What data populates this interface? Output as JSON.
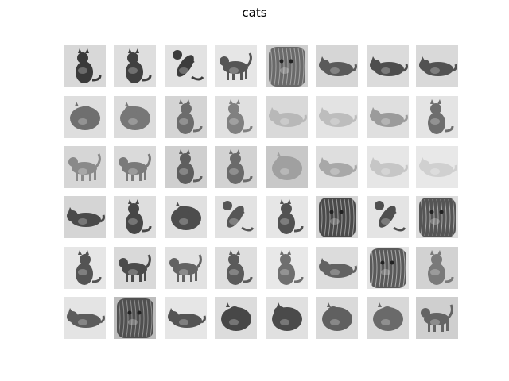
{
  "figure": {
    "title": "cats",
    "grid": {
      "rows": 6,
      "cols": 8
    },
    "thumbnails": [
      {
        "desc": "cat-sitting-side",
        "bg": "#d8d8d8",
        "fg": "#3a3a3a",
        "mode": "sit"
      },
      {
        "desc": "cat-sitting-back",
        "bg": "#dedede",
        "fg": "#404040",
        "mode": "sit"
      },
      {
        "desc": "cat-stretching-up",
        "bg": "#e2e2e2",
        "fg": "#3c3c3c",
        "mode": "jump"
      },
      {
        "desc": "cat-standing",
        "bg": "#e6e6e6",
        "fg": "#555555",
        "mode": "stand"
      },
      {
        "desc": "cat-closeup-tabby",
        "bg": "#cfcfcf",
        "fg": "#6a6a6a",
        "mode": "texture"
      },
      {
        "desc": "cat-lying-tabby",
        "bg": "#d6d6d6",
        "fg": "#5a5a5a",
        "mode": "lie"
      },
      {
        "desc": "cat-lying-tabby",
        "bg": "#dbdbdb",
        "fg": "#4e4e4e",
        "mode": "lie"
      },
      {
        "desc": "cat-lying-tabby",
        "bg": "#d9d9d9",
        "fg": "#525252",
        "mode": "lie"
      },
      {
        "desc": "cat-curled-tabby",
        "bg": "#dedede",
        "fg": "#6f6f6f",
        "mode": "blob"
      },
      {
        "desc": "cat-curled-tabby",
        "bg": "#dcdcdc",
        "fg": "#777777",
        "mode": "blob"
      },
      {
        "desc": "cat-sitting-white-chest",
        "bg": "#d4d4d4",
        "fg": "#6c6c6c",
        "mode": "sit"
      },
      {
        "desc": "cat-sitting-tabby",
        "bg": "#e0e0e0",
        "fg": "#808080",
        "mode": "sit"
      },
      {
        "desc": "cat-lying-calico",
        "bg": "#d9d9d9",
        "fg": "#b8b8b8",
        "mode": "lie"
      },
      {
        "desc": "cat-lying-calico",
        "bg": "#e3e3e3",
        "fg": "#bdbdbd",
        "mode": "lie"
      },
      {
        "desc": "cat-lying-calico",
        "bg": "#dfdfdf",
        "fg": "#9b9b9b",
        "mode": "lie"
      },
      {
        "desc": "cat-sitting-calico",
        "bg": "#e4e4e4",
        "fg": "#6e6e6e",
        "mode": "sit"
      },
      {
        "desc": "cat-walking-tabby",
        "bg": "#d6d6d6",
        "fg": "#8a8a8a",
        "mode": "stand"
      },
      {
        "desc": "cat-walking-tabby",
        "bg": "#dadada",
        "fg": "#7a7a7a",
        "mode": "stand"
      },
      {
        "desc": "cat-sitting-tabby",
        "bg": "#cfcfcf",
        "fg": "#5e5e5e",
        "mode": "sit"
      },
      {
        "desc": "cat-sitting-tabby",
        "bg": "#d2d2d2",
        "fg": "#6a6a6a",
        "mode": "sit"
      },
      {
        "desc": "cat-fluffy-persian",
        "bg": "#c8c8c8",
        "fg": "#a0a0a0",
        "mode": "blob"
      },
      {
        "desc": "cat-lying-white",
        "bg": "#dedede",
        "fg": "#a8a8a8",
        "mode": "lie"
      },
      {
        "desc": "cat-lying-white",
        "bg": "#e6e6e6",
        "fg": "#c6c6c6",
        "mode": "lie"
      },
      {
        "desc": "cat-lying-white",
        "bg": "#e8e8e8",
        "fg": "#d0d0d0",
        "mode": "lie"
      },
      {
        "desc": "cat-crouching-dark",
        "bg": "#d5d5d5",
        "fg": "#4a4a4a",
        "mode": "lie"
      },
      {
        "desc": "cat-sitting-dark",
        "bg": "#dedede",
        "fg": "#474747",
        "mode": "sit"
      },
      {
        "desc": "cat-fluffy-dark",
        "bg": "#e0e0e0",
        "fg": "#4d4d4d",
        "mode": "blob"
      },
      {
        "desc": "cat-climbing-dark",
        "bg": "#e2e2e2",
        "fg": "#565656",
        "mode": "jump"
      },
      {
        "desc": "cat-sitting-dark",
        "bg": "#e6e6e6",
        "fg": "#525252",
        "mode": "sit"
      },
      {
        "desc": "cat-lying-dark-closeup",
        "bg": "#d6d6d6",
        "fg": "#4a4a4a",
        "mode": "texture"
      },
      {
        "desc": "cat-rolling-dark",
        "bg": "#e4e4e4",
        "fg": "#4f4f4f",
        "mode": "jump"
      },
      {
        "desc": "cat-lying-dark-closeup",
        "bg": "#dddddd",
        "fg": "#555555",
        "mode": "texture"
      },
      {
        "desc": "cat-sitting-dark",
        "bg": "#e6e6e6",
        "fg": "#545454",
        "mode": "sit"
      },
      {
        "desc": "cat-walking-dark",
        "bg": "#d9d9d9",
        "fg": "#4b4b4b",
        "mode": "stand"
      },
      {
        "desc": "cat-walking-grey",
        "bg": "#e2e2e2",
        "fg": "#636363",
        "mode": "stand"
      },
      {
        "desc": "cat-sitting-grey",
        "bg": "#dedede",
        "fg": "#5b5b5b",
        "mode": "sit"
      },
      {
        "desc": "cat-sitting-grey",
        "bg": "#e8e8e8",
        "fg": "#6f6f6f",
        "mode": "sit"
      },
      {
        "desc": "cat-lying-grey",
        "bg": "#dcdcdc",
        "fg": "#626262",
        "mode": "lie"
      },
      {
        "desc": "cat-closeup-grey",
        "bg": "#e4e4e4",
        "fg": "#5a5a5a",
        "mode": "texture"
      },
      {
        "desc": "cat-sitting-grey",
        "bg": "#d2d2d2",
        "fg": "#7a7a7a",
        "mode": "sit"
      },
      {
        "desc": "cat-lying-tabby-stripes",
        "bg": "#e4e4e4",
        "fg": "#5c5c5c",
        "mode": "lie"
      },
      {
        "desc": "cat-closeup-tabby-face",
        "bg": "#bdbdbd",
        "fg": "#505050",
        "mode": "texture"
      },
      {
        "desc": "cat-lying-tabby-stripes",
        "bg": "#e6e6e6",
        "fg": "#545454",
        "mode": "lie"
      },
      {
        "desc": "cat-curled-tabby",
        "bg": "#dcdcdc",
        "fg": "#474747",
        "mode": "blob"
      },
      {
        "desc": "cat-fluffy-dark",
        "bg": "#e0e0e0",
        "fg": "#4a4a4a",
        "mode": "blob"
      },
      {
        "desc": "cat-fluffy-grey",
        "bg": "#dadada",
        "fg": "#606060",
        "mode": "blob"
      },
      {
        "desc": "cat-fluffy-grey",
        "bg": "#d8d8d8",
        "fg": "#6a6a6a",
        "mode": "blob"
      },
      {
        "desc": "cat-fluffy-grey-standing",
        "bg": "#cfcfcf",
        "fg": "#646464",
        "mode": "stand"
      }
    ]
  }
}
